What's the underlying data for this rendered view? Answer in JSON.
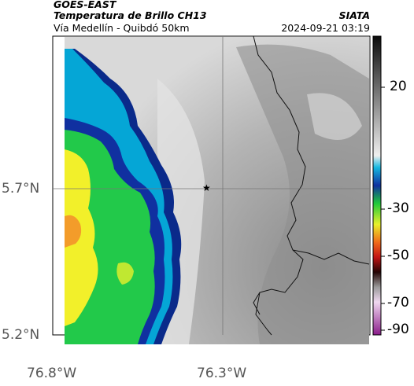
{
  "header": {
    "satellite": "GOES-EAST",
    "product": "Temperatura de Brillo CH13",
    "route": "Vía Medellín - Quibdó 50km",
    "agency": "SIATA",
    "datetime": "2024-09-21 03:19"
  },
  "axes": {
    "lat_labels": [
      "5.7°N",
      "5.2°N"
    ],
    "lon_labels": [
      "76.8°W",
      "76.3°W"
    ]
  },
  "colorbar": {
    "ticks": [
      "20",
      "-30",
      "-50",
      "-70",
      "-90"
    ]
  },
  "marker": {
    "name": "star-marker",
    "glyph": "★"
  },
  "colors": {
    "cold_cloud_blue": "#0a2a8a",
    "cyan": "#05a6d6",
    "green": "#22c94a",
    "yellow": "#f2f02a",
    "orange": "#f39c2a",
    "warm_gray": "#d8d8d8"
  }
}
